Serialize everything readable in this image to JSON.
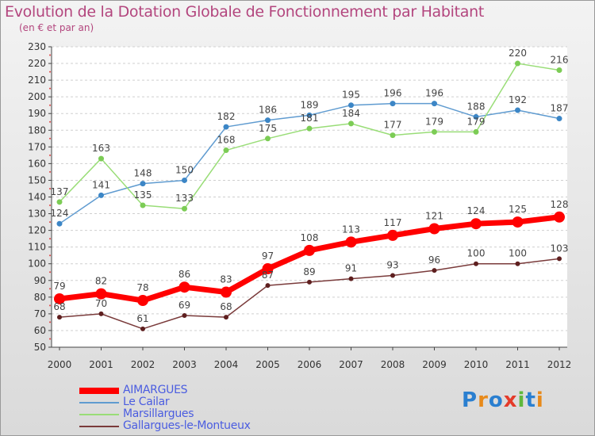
{
  "header": {
    "title": "Evolution de la Dotation Globale de Fonctionnement par Habitant",
    "subtitle": "(en € et par an)"
  },
  "logo": {
    "text": "Proxiti",
    "colors": [
      "#2a7fd0",
      "#e88a1a",
      "#2a7fd0",
      "#e43b2a",
      "#5fb83c",
      "#2a7fd0",
      "#e88a1a"
    ]
  },
  "chart_data": {
    "type": "line",
    "x": [
      "2000",
      "2001",
      "2002",
      "2003",
      "2004",
      "2005",
      "2006",
      "2007",
      "2008",
      "2009",
      "2010",
      "2011",
      "2012"
    ],
    "ylim": [
      50,
      230
    ],
    "yticks": [
      50,
      60,
      70,
      80,
      90,
      100,
      110,
      120,
      130,
      140,
      150,
      160,
      170,
      180,
      190,
      200,
      210,
      220,
      230
    ],
    "grid": "horizontal dashed",
    "legend": "bottom-left",
    "series": [
      {
        "name": "Le Cailar",
        "color": "#5f9bd0",
        "marker": "#3c86c6",
        "width": 1.5,
        "radius": 3.5,
        "values": [
          124,
          141,
          148,
          150,
          182,
          186,
          189,
          195,
          196,
          196,
          188,
          192,
          187
        ]
      },
      {
        "name": "Marsillargues",
        "color": "#99dd77",
        "marker": "#7ccc55",
        "width": 1.5,
        "radius": 3.5,
        "values": [
          137,
          163,
          135,
          133,
          168,
          175,
          181,
          184,
          177,
          179,
          179,
          220,
          216
        ]
      },
      {
        "name": "Gallargues-le-Montueux",
        "color": "#7a3b3b",
        "marker": "#5e1f1f",
        "width": 1.5,
        "radius": 3,
        "values": [
          68,
          70,
          61,
          69,
          68,
          87,
          89,
          91,
          93,
          96,
          100,
          100,
          103
        ]
      },
      {
        "name": "AIMARGUES",
        "color": "#ff0000",
        "marker": "#ff0000",
        "width": 7,
        "radius": 7,
        "values": [
          79,
          82,
          78,
          86,
          83,
          97,
          108,
          113,
          117,
          121,
          124,
          125,
          128
        ]
      }
    ],
    "legend_order": [
      "AIMARGUES",
      "Le Cailar",
      "Marsillargues",
      "Gallargues-le-Montueux"
    ],
    "legend_colors": [
      "#4b5de0",
      "#4b5de0",
      "#4b5de0",
      "#4b5de0"
    ]
  }
}
